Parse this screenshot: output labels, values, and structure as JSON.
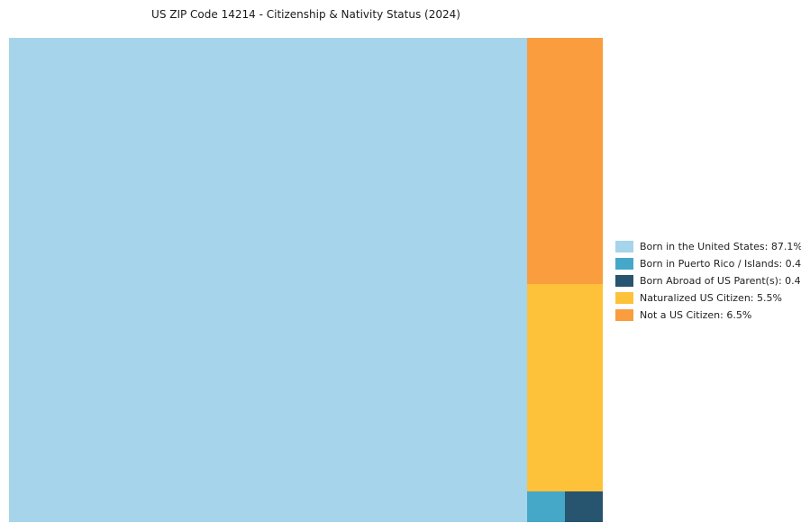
{
  "title": "US ZIP Code 14214 - Citizenship & Nativity Status (2024)",
  "colors": {
    "background": "#ffffff",
    "title_text": "#1a1a1a",
    "legend_text": "#222222"
  },
  "chart_data": {
    "type": "pie",
    "variant": "treemap",
    "title": "US ZIP Code 14214 - Citizenship & Nativity Status (2024)",
    "legend_position": "right",
    "units": "percent",
    "slices": [
      {
        "label": "Born in the United States",
        "value": 87.1,
        "color": "#a6d4ea",
        "legend_text": "Born in the United States: 87.1%"
      },
      {
        "label": "Born in Puerto Rico / Islands",
        "value": 0.4,
        "color": "#45a8c8",
        "legend_text": "Born in Puerto Rico / Islands: 0.4%"
      },
      {
        "label": "Born Abroad of US Parent(s)",
        "value": 0.4,
        "color": "#27546e",
        "legend_text": "Born Abroad of US Parent(s): 0.4%"
      },
      {
        "label": "Naturalized US Citizen",
        "value": 5.5,
        "color": "#fdc23a",
        "legend_text": "Naturalized US Citizen: 5.5%"
      },
      {
        "label": "Not a US Citizen",
        "value": 6.5,
        "color": "#f99d3e",
        "legend_text": "Not a US Citizen: 6.5%"
      }
    ]
  }
}
